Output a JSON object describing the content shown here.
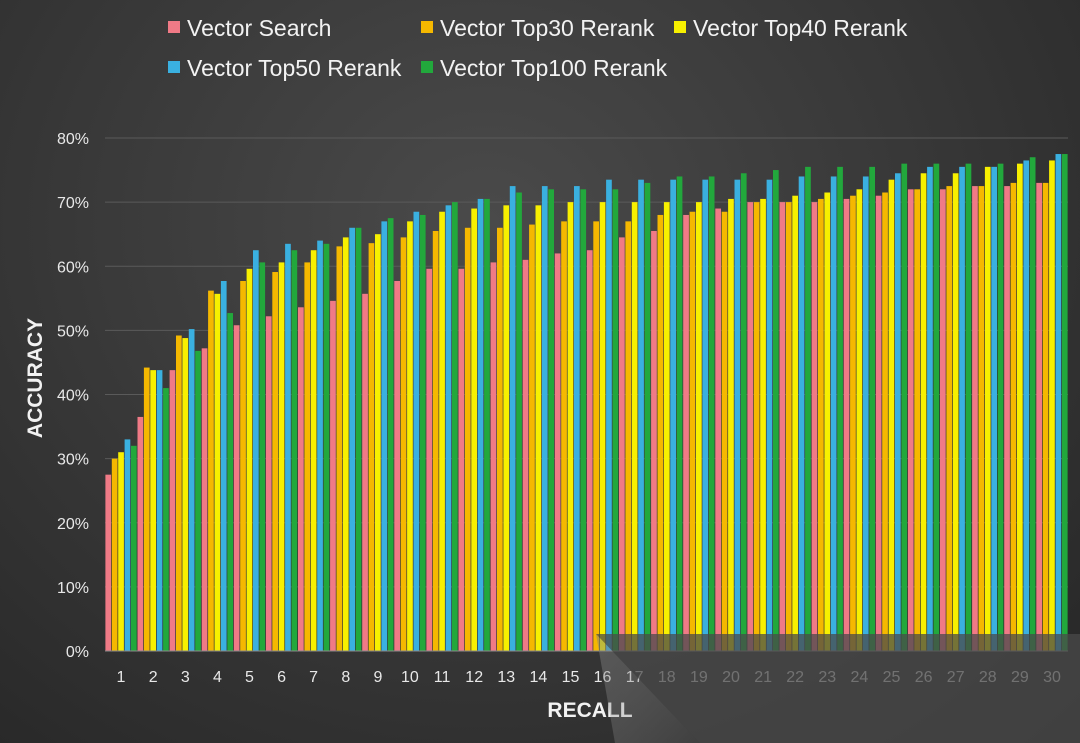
{
  "chart_data": {
    "type": "bar",
    "title": "",
    "xlabel": "RECALL",
    "ylabel": "ACCURACY",
    "ylim": [
      0,
      80
    ],
    "y_ticks": [
      "0%",
      "10%",
      "20%",
      "30%",
      "40%",
      "50%",
      "60%",
      "70%",
      "80%"
    ],
    "grid": true,
    "legend_position": "top",
    "categories": [
      "1",
      "2",
      "3",
      "4",
      "5",
      "6",
      "7",
      "8",
      "9",
      "10",
      "11",
      "12",
      "13",
      "14",
      "15",
      "16",
      "17",
      "18",
      "19",
      "20",
      "21",
      "22",
      "23",
      "24",
      "25",
      "26",
      "27",
      "28",
      "29",
      "30"
    ],
    "series": [
      {
        "name": "Vector Search",
        "color": "#f07a86",
        "values": [
          27.5,
          36.5,
          43.8,
          47.2,
          50.8,
          52.2,
          53.6,
          54.6,
          55.7,
          57.7,
          59.6,
          59.6,
          60.6,
          61.0,
          62.0,
          62.5,
          64.5,
          65.5,
          68.0,
          69.0,
          70.0,
          70.0,
          70.0,
          70.5,
          71.0,
          72.0,
          72.0,
          72.5,
          72.5,
          73.0
        ]
      },
      {
        "name": "Vector Top30 Rerank",
        "color": "#f5b800",
        "values": [
          30.0,
          44.2,
          49.2,
          56.2,
          57.7,
          59.1,
          60.6,
          63.1,
          63.6,
          64.5,
          65.5,
          66.0,
          66.0,
          66.5,
          67.0,
          67.0,
          67.0,
          68.0,
          68.5,
          68.5,
          70.0,
          70.0,
          70.5,
          71.0,
          71.5,
          72.0,
          72.5,
          72.5,
          73.0,
          73.0
        ]
      },
      {
        "name": "Vector Top40 Rerank",
        "color": "#f7f000",
        "values": [
          31.0,
          43.8,
          48.8,
          55.7,
          59.6,
          60.6,
          62.5,
          64.5,
          65.0,
          67.0,
          68.5,
          69.0,
          69.5,
          69.5,
          70.0,
          70.0,
          70.0,
          70.0,
          70.0,
          70.5,
          70.5,
          71.0,
          71.5,
          72.0,
          73.5,
          74.5,
          74.5,
          75.5,
          76.0,
          76.5
        ]
      },
      {
        "name": "Vector Top50 Rerank",
        "color": "#3ab0e0",
        "values": [
          33.0,
          43.8,
          50.2,
          57.7,
          62.5,
          63.5,
          64.0,
          66.0,
          67.0,
          68.5,
          69.5,
          70.5,
          72.5,
          72.5,
          72.5,
          73.5,
          73.5,
          73.5,
          73.5,
          73.5,
          73.5,
          74.0,
          74.0,
          74.0,
          74.5,
          75.5,
          75.5,
          75.5,
          76.5,
          77.5
        ]
      },
      {
        "name": "Vector Top100 Rerank",
        "color": "#22a83c",
        "values": [
          32.0,
          41.0,
          46.8,
          52.7,
          60.6,
          62.5,
          63.5,
          66.0,
          67.5,
          68.0,
          70.0,
          70.5,
          71.5,
          72.0,
          72.0,
          72.0,
          73.0,
          74.0,
          74.0,
          74.5,
          75.0,
          75.5,
          75.5,
          75.5,
          76.0,
          76.0,
          76.0,
          76.0,
          77.0,
          77.5
        ]
      }
    ]
  }
}
